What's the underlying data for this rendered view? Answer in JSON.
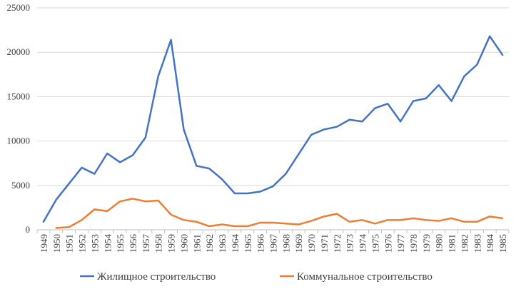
{
  "chart_data": {
    "type": "line",
    "title": "",
    "xlabel": "",
    "ylabel": "",
    "ylim": [
      0,
      25000
    ],
    "yticks": [
      "0",
      "5000",
      "10000",
      "15000",
      "20000",
      "25000"
    ],
    "grid": "horizontal",
    "legend_position": "bottom",
    "categories": [
      "1949",
      "1950",
      "1951",
      "1952",
      "1953",
      "1954",
      "1955",
      "1956",
      "1957",
      "1958",
      "1959",
      "1960",
      "1961",
      "1962",
      "1963",
      "1964",
      "1965",
      "1966",
      "1967",
      "1968",
      "1969",
      "1970",
      "1971",
      "1972",
      "1973",
      "1974",
      "1975",
      "1976",
      "1977",
      "1978",
      "1979",
      "1980",
      "1981",
      "1982",
      "1983",
      "1984",
      "1985"
    ],
    "series": [
      {
        "name": "Жилищное строительство",
        "color": "#4472C4",
        "values": [
          900,
          3400,
          5200,
          7000,
          6300,
          8600,
          7600,
          8400,
          10400,
          17300,
          21400,
          11300,
          7200,
          6900,
          5700,
          4100,
          4100,
          4300,
          4900,
          6300,
          8500,
          10700,
          11300,
          11600,
          12400,
          12200,
          13700,
          14200,
          12200,
          14500,
          14800,
          16300,
          14500,
          17300,
          18600,
          21800,
          19700
        ]
      },
      {
        "name": "Коммунальное строительство",
        "color": "#ED7D31",
        "values": [
          null,
          200,
          300,
          1100,
          2300,
          2100,
          3200,
          3500,
          3200,
          3300,
          1700,
          1100,
          900,
          400,
          600,
          400,
          400,
          800,
          800,
          700,
          600,
          1000,
          1500,
          1800,
          900,
          1100,
          700,
          1100,
          1100,
          1300,
          1100,
          1000,
          1300,
          900,
          900,
          1500,
          1300
        ]
      }
    ]
  }
}
